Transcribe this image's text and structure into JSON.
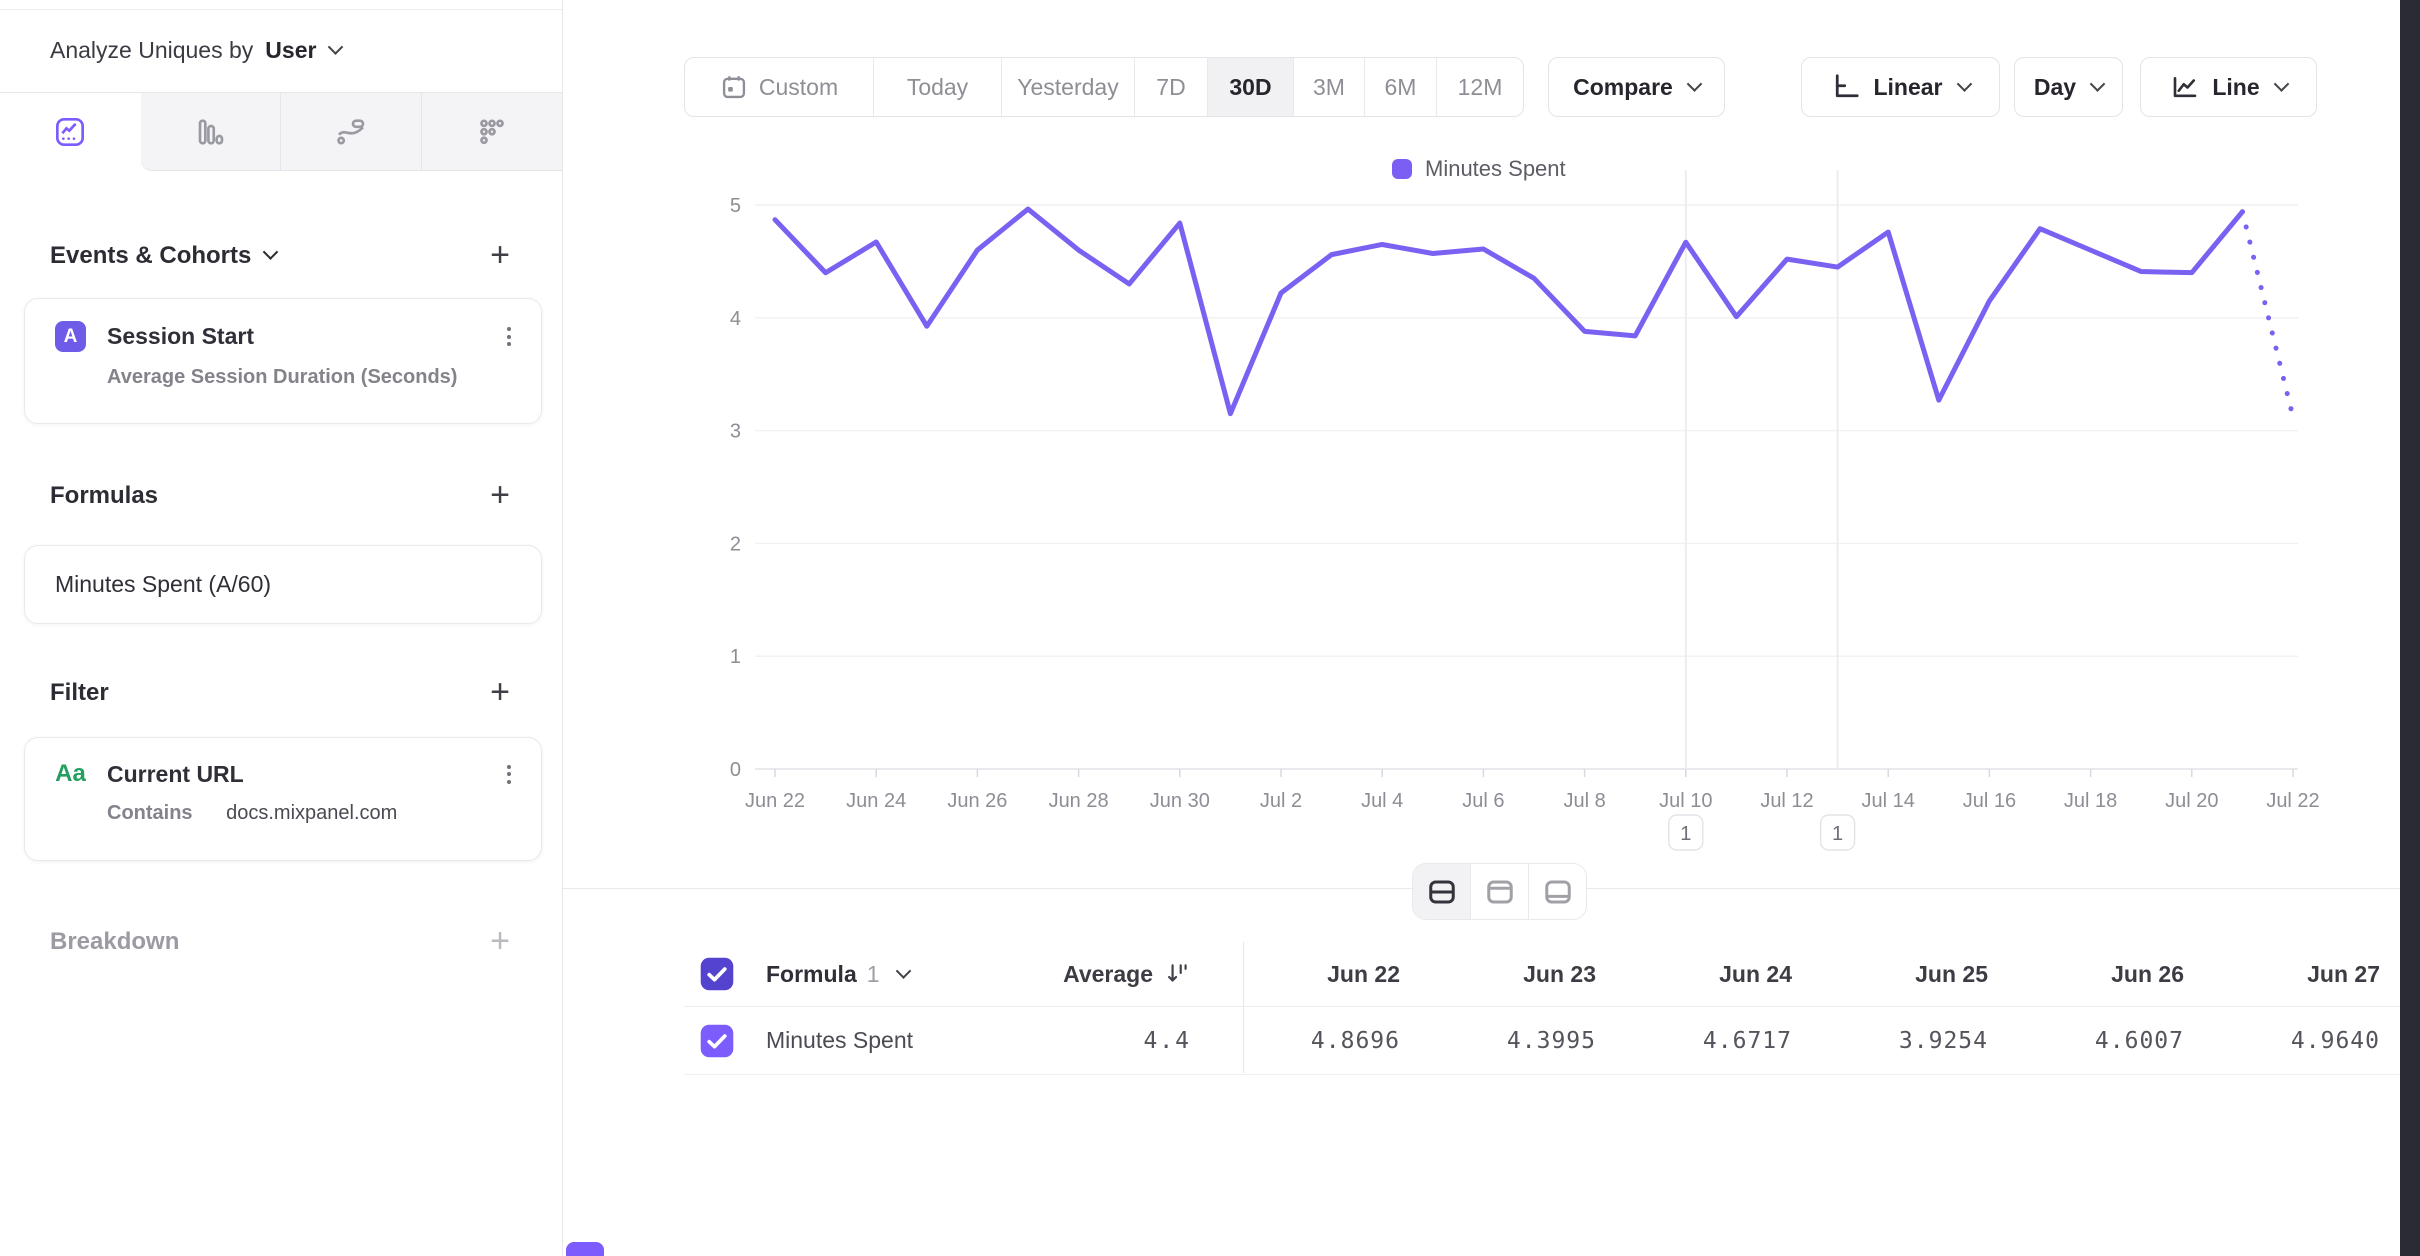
{
  "colors": {
    "accent": "#7b61f2",
    "legend_swatch": "#7b5ff5",
    "badge_purple": "#6e5be8",
    "badge_green": "#23a05f",
    "checkbox_header": "#5443cf",
    "checkbox_row": "#7c5cfc"
  },
  "sidebar": {
    "analyze_label": "Analyze Uniques by",
    "analyze_value": "User",
    "tabs": [
      "insights-line-chart",
      "bar-chart",
      "flows",
      "retention-dots"
    ],
    "events_section": {
      "title": "Events & Cohorts",
      "add": "+"
    },
    "event_card": {
      "badge": "A",
      "name": "Session Start",
      "metric": "Average Session Duration (Seconds)"
    },
    "formulas_section": {
      "title": "Formulas",
      "add": "+"
    },
    "formula_card": {
      "name": "Minutes Spent (A/60)"
    },
    "filter_section": {
      "title": "Filter",
      "add": "+"
    },
    "filter_card": {
      "badge": "Aa",
      "name": "Current URL",
      "operator": "Contains",
      "value": "docs.mixpanel.com"
    },
    "breakdown_section": {
      "title": "Breakdown",
      "add": "+"
    }
  },
  "toolbar": {
    "date_ranges": [
      "Custom",
      "Today",
      "Yesterday",
      "7D",
      "30D",
      "3M",
      "6M",
      "12M"
    ],
    "active_range": "30D",
    "compare_label": "Compare",
    "scale_label": "Linear",
    "interval_label": "Day",
    "chart_type_label": "Line"
  },
  "chart_data": {
    "type": "line",
    "title": "",
    "xlabel": "",
    "ylabel": "",
    "ylim": [
      0,
      5
    ],
    "yticks": [
      0,
      1,
      2,
      3,
      4,
      5
    ],
    "grid": "horizontal",
    "legend_position": "top",
    "x_tick_labels": [
      "Jun 22",
      "Jun 24",
      "Jun 26",
      "Jun 28",
      "Jun 30",
      "Jul 2",
      "Jul 4",
      "Jul 6",
      "Jul 8",
      "Jul 10",
      "Jul 12",
      "Jul 14",
      "Jul 16",
      "Jul 18",
      "Jul 20",
      "Jul 22"
    ],
    "series": [
      {
        "name": "Minutes Spent",
        "color": "#7b61f2",
        "x": [
          "Jun 22",
          "Jun 23",
          "Jun 24",
          "Jun 25",
          "Jun 26",
          "Jun 27",
          "Jun 28",
          "Jun 29",
          "Jun 30",
          "Jul 1",
          "Jul 2",
          "Jul 3",
          "Jul 4",
          "Jul 5",
          "Jul 6",
          "Jul 7",
          "Jul 8",
          "Jul 9",
          "Jul 10",
          "Jul 11",
          "Jul 12",
          "Jul 13",
          "Jul 14",
          "Jul 15",
          "Jul 16",
          "Jul 17",
          "Jul 18",
          "Jul 19",
          "Jul 20",
          "Jul 21",
          "Jul 22"
        ],
        "values": [
          4.8696,
          4.3995,
          4.6717,
          3.9254,
          4.6007,
          4.964,
          4.6,
          4.3,
          4.84,
          3.15,
          4.22,
          4.56,
          4.65,
          4.57,
          4.61,
          4.35,
          3.88,
          3.84,
          4.67,
          4.01,
          4.52,
          4.45,
          4.76,
          3.27,
          4.15,
          4.79,
          4.6,
          4.41,
          4.4,
          4.94,
          3.12
        ],
        "last_segment_style": "dotted"
      }
    ],
    "annotations": [
      {
        "label": "1",
        "date": "Jul 10"
      },
      {
        "label": "1",
        "date": "Jul 13"
      }
    ]
  },
  "view_toggle": {
    "options": [
      "split-horizontal",
      "panel-top",
      "panel-bottom"
    ],
    "active_index": 0
  },
  "table": {
    "series_label": "Formula",
    "series_number": "1",
    "average_header": "Average",
    "row_name": "Minutes Spent",
    "average_value": "4.4",
    "columns": [
      "Jun 22",
      "Jun 23",
      "Jun 24",
      "Jun 25",
      "Jun 26",
      "Jun 27"
    ],
    "values": [
      "4.8696",
      "4.3995",
      "4.6717",
      "3.9254",
      "4.6007",
      "4.9640"
    ]
  }
}
